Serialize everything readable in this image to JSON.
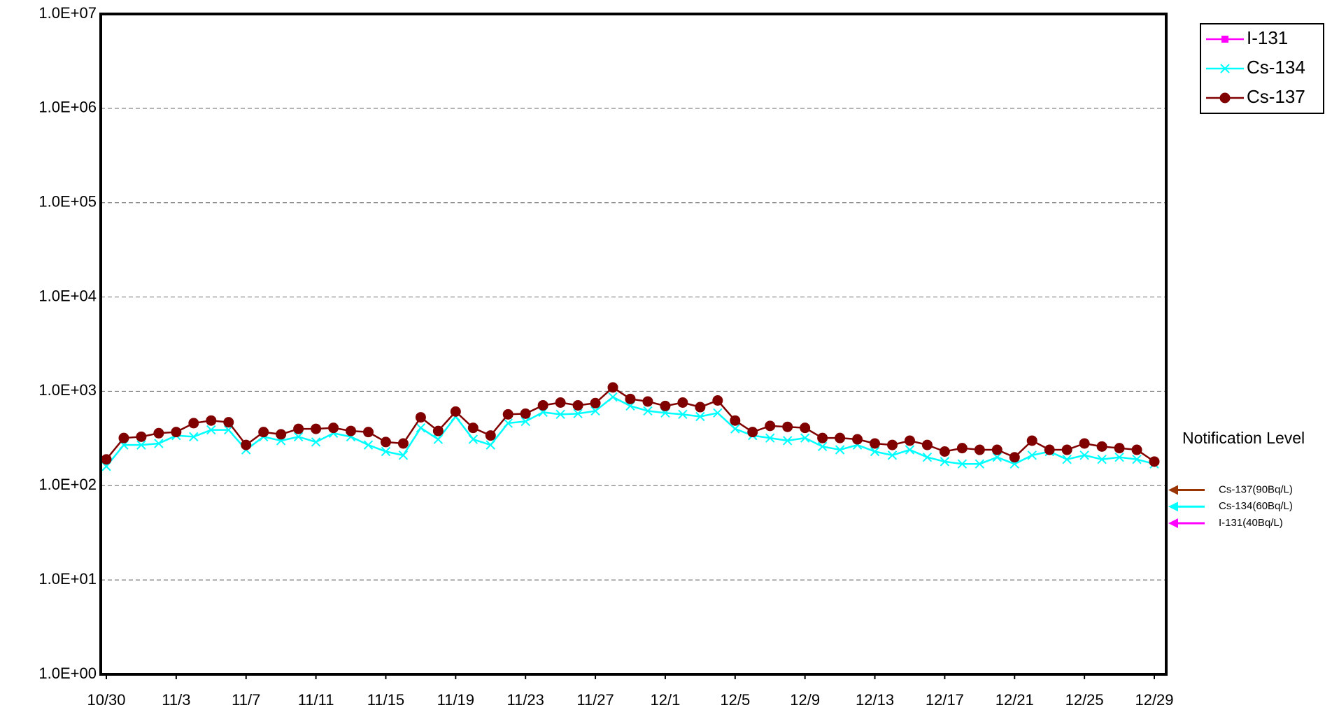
{
  "chart_data": {
    "type": "line",
    "log_scale": true,
    "grid": true,
    "categories": [
      "10/30",
      null,
      null,
      null,
      "11/3",
      null,
      null,
      null,
      "11/7",
      null,
      null,
      null,
      "11/11",
      null,
      null,
      null,
      "11/15",
      null,
      null,
      null,
      "11/19",
      null,
      null,
      null,
      "11/23",
      null,
      null,
      null,
      "11/27",
      null,
      null,
      null,
      "12/1",
      null,
      null,
      null,
      "12/5",
      null,
      null,
      null,
      "12/9",
      null,
      null,
      null,
      "12/13",
      null,
      null,
      null,
      "12/17",
      null,
      null,
      null,
      "12/21",
      null,
      null,
      null,
      "12/25",
      null,
      null,
      null,
      "12/29"
    ],
    "series": [
      {
        "name": "I-131",
        "color": "#ff00ff",
        "marker": "square",
        "values": [
          null,
          null,
          null,
          null,
          null,
          null,
          null,
          null,
          null,
          null,
          null,
          null,
          null,
          null,
          null,
          null,
          null,
          null,
          null,
          null,
          null,
          null,
          null,
          null,
          null,
          null,
          null,
          null,
          null,
          null,
          null,
          null,
          null,
          null,
          null,
          null,
          null,
          null,
          null,
          null,
          null,
          null,
          null,
          null,
          null,
          null,
          null,
          null,
          null,
          null,
          null,
          null,
          null,
          null,
          null,
          null,
          null,
          null,
          null,
          null,
          null
        ]
      },
      {
        "name": "Cs-134",
        "color": "#00ffff",
        "marker": "x",
        "values": [
          160,
          270,
          270,
          280,
          340,
          330,
          390,
          390,
          240,
          330,
          300,
          330,
          290,
          360,
          330,
          270,
          230,
          210,
          410,
          310,
          540,
          310,
          270,
          460,
          480,
          600,
          570,
          580,
          620,
          870,
          700,
          620,
          590,
          570,
          540,
          590,
          400,
          340,
          320,
          300,
          320,
          260,
          240,
          270,
          230,
          210,
          240,
          200,
          180,
          170,
          170,
          200,
          170,
          210,
          230,
          190,
          210,
          190,
          200,
          190,
          170
        ]
      },
      {
        "name": "Cs-137",
        "color": "#800000",
        "marker": "circle",
        "values": [
          190,
          320,
          330,
          360,
          370,
          460,
          490,
          470,
          270,
          370,
          350,
          400,
          400,
          410,
          380,
          370,
          290,
          280,
          530,
          380,
          610,
          410,
          340,
          570,
          580,
          710,
          760,
          710,
          750,
          1100,
          830,
          780,
          700,
          760,
          680,
          800,
          490,
          370,
          430,
          420,
          410,
          320,
          320,
          310,
          280,
          270,
          300,
          270,
          230,
          250,
          240,
          240,
          200,
          300,
          240,
          240,
          280,
          260,
          250,
          240,
          180
        ]
      }
    ],
    "ylim": [
      1,
      10000000
    ],
    "yticks": [
      {
        "value": 1,
        "label": "1.0E+00"
      },
      {
        "value": 10,
        "label": "1.0E+01"
      },
      {
        "value": 100,
        "label": "1.0E+02"
      },
      {
        "value": 1000,
        "label": "1.0E+03"
      },
      {
        "value": 10000,
        "label": "1.0E+04"
      },
      {
        "value": 100000,
        "label": "1.0E+05"
      },
      {
        "value": 1000000,
        "label": "1.0E+06"
      },
      {
        "value": 10000000,
        "label": "1.0E+07"
      }
    ],
    "notification_title": "Notification Level",
    "notification_levels": [
      {
        "label": "Cs-137(90Bq/L)",
        "value": 90,
        "color": "#993300"
      },
      {
        "label": "Cs-134(60Bq/L)",
        "value": 60,
        "color": "#00ffff"
      },
      {
        "label": "I-131(40Bq/L)",
        "value": 40,
        "color": "#ff00ff"
      }
    ]
  }
}
